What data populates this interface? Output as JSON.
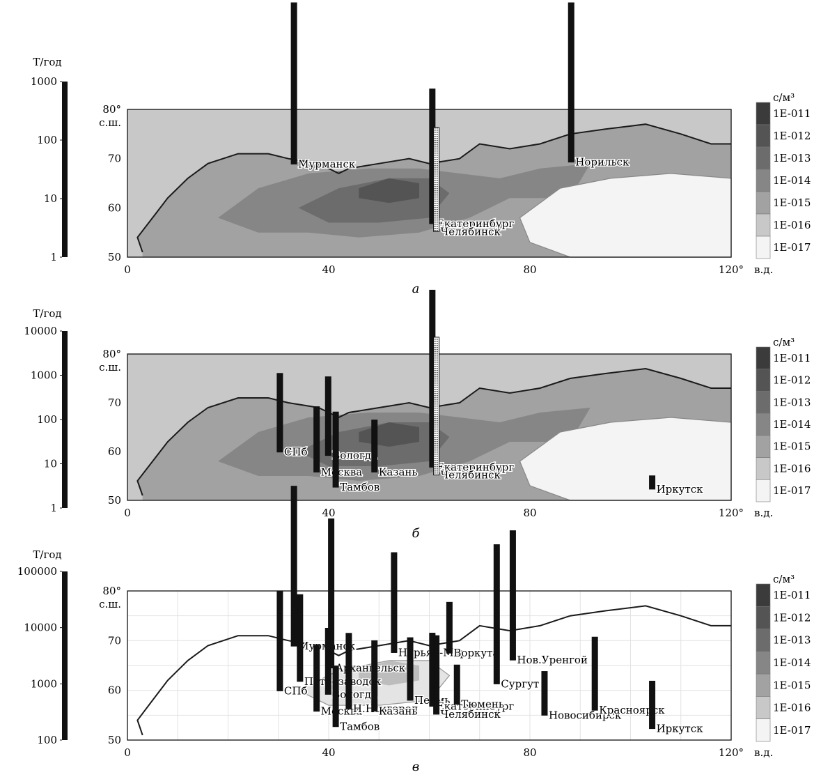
{
  "colors": {
    "ocean": "#cfcfcf",
    "land": "#b2b2b2",
    "bar": "#111111",
    "legend": [
      "#3b3b3b",
      "#545454",
      "#6c6c6c",
      "#868686",
      "#a2a2a2",
      "#c8c8c8",
      "#f4f4f4"
    ]
  },
  "legend": {
    "unit": "с/м³",
    "entries": [
      "1E-011",
      "1E-012",
      "1E-013",
      "1E-014",
      "1E-015",
      "1E-016",
      "1E-017"
    ]
  },
  "axes": {
    "x_ticks": [
      "0",
      "40",
      "80",
      "120°"
    ],
    "x_suffix": "в.д.",
    "y_ticks": [
      "50",
      "60",
      "70",
      "80°"
    ],
    "y_suffix": "с.ш."
  },
  "panels": [
    {
      "id": "a",
      "caption": "а",
      "scale_title": "Т/год",
      "scale_ticks": [
        "1",
        "10",
        "100",
        "1000"
      ],
      "show_field": true,
      "cities": [
        {
          "name": "Мурманск",
          "lon": 33.1,
          "lat": 68.9,
          "value": 25000
        },
        {
          "name": "Норильск",
          "lon": 88.2,
          "lat": 69.3,
          "value": 40000
        },
        {
          "name": "Екатеринбург",
          "lon": 60.6,
          "lat": 56.8,
          "value": 200
        },
        {
          "name": "Челябинск",
          "lon": 61.4,
          "lat": 55.2,
          "value": 60
        }
      ]
    },
    {
      "id": "b",
      "caption": "б",
      "scale_title": "Т/год",
      "scale_ticks": [
        "1",
        "10",
        "100",
        "1000",
        "10000"
      ],
      "show_field": true,
      "cities": [
        {
          "name": "СПб",
          "lon": 30.3,
          "lat": 59.9,
          "value": 60
        },
        {
          "name": "Москва",
          "lon": 37.6,
          "lat": 55.8,
          "value": 30
        },
        {
          "name": "Вологда",
          "lon": 39.9,
          "lat": 59.2,
          "value": 60
        },
        {
          "name": "Тамбов",
          "lon": 41.4,
          "lat": 52.7,
          "value": 50
        },
        {
          "name": "Казань",
          "lon": 49.1,
          "lat": 55.8,
          "value": 15
        },
        {
          "name": "Екатеринбург",
          "lon": 60.6,
          "lat": 56.8,
          "value": 10000
        },
        {
          "name": "Челябинск",
          "lon": 61.4,
          "lat": 55.2,
          "value": 1300
        },
        {
          "name": "Иркутск",
          "lon": 104.3,
          "lat": 52.3,
          "value": 2
        }
      ]
    },
    {
      "id": "c",
      "caption": "в",
      "scale_title": "Т/год",
      "scale_ticks": [
        "100",
        "1000",
        "10000",
        "100000"
      ],
      "show_field": false,
      "cities": [
        {
          "name": "Мурманск",
          "lon": 33.1,
          "lat": 68.9,
          "value": 70000
        },
        {
          "name": "Архангельск",
          "lon": 40.5,
          "lat": 64.5,
          "value": 45000
        },
        {
          "name": "Петрозаводск",
          "lon": 34.3,
          "lat": 61.8,
          "value": 3500
        },
        {
          "name": "СПб",
          "lon": 30.3,
          "lat": 59.9,
          "value": 6000
        },
        {
          "name": "Вологда",
          "lon": 39.9,
          "lat": 59.2,
          "value": 1500
        },
        {
          "name": "Москва",
          "lon": 37.6,
          "lat": 55.8,
          "value": 1500
        },
        {
          "name": "Н.Новгород",
          "lon": 44.0,
          "lat": 56.3,
          "value": 2200
        },
        {
          "name": "Тамбов",
          "lon": 41.4,
          "lat": 52.7,
          "value": 1200
        },
        {
          "name": "Нарьян-Мар",
          "lon": 53.0,
          "lat": 67.6,
          "value": 6000
        },
        {
          "name": "Казань",
          "lon": 49.1,
          "lat": 55.8,
          "value": 1800
        },
        {
          "name": "Пермь",
          "lon": 56.2,
          "lat": 58.0,
          "value": 1300
        },
        {
          "name": "Воркута",
          "lon": 64.0,
          "lat": 67.5,
          "value": 800
        },
        {
          "name": "Екатеринбург",
          "lon": 60.6,
          "lat": 56.8,
          "value": 2000
        },
        {
          "name": "Челябинск",
          "lon": 61.4,
          "lat": 55.2,
          "value": 2500
        },
        {
          "name": "Тюмень",
          "lon": 65.5,
          "lat": 57.2,
          "value": 500
        },
        {
          "name": "Нов.Уренгой",
          "lon": 76.6,
          "lat": 66.1,
          "value": 20000
        },
        {
          "name": "Сургут",
          "lon": 73.4,
          "lat": 61.3,
          "value": 30000
        },
        {
          "name": "Новосибирск",
          "lon": 82.9,
          "lat": 55.0,
          "value": 600
        },
        {
          "name": "Красноярск",
          "lon": 92.9,
          "lat": 56.0,
          "value": 2000
        },
        {
          "name": "Иркутск",
          "lon": 104.3,
          "lat": 52.3,
          "value": 700
        }
      ]
    }
  ]
}
